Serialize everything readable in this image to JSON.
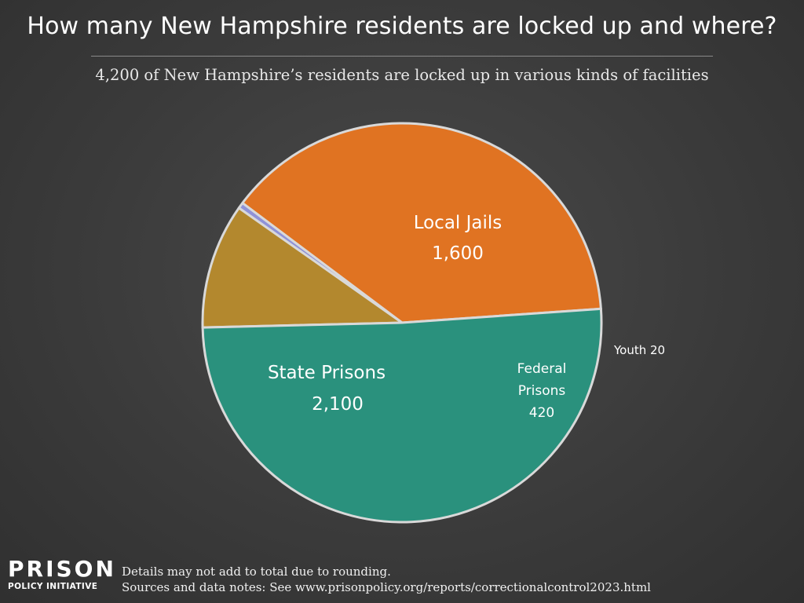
{
  "header": {
    "title": "How many New Hampshire residents are locked up and where?",
    "subtitle": "4,200 of New Hampshire’s residents are locked up in various kinds of facilities"
  },
  "chart_data": {
    "type": "pie",
    "total": 4200,
    "slices": [
      {
        "label": "Local Jails",
        "value_label": "1,600",
        "value": 1600,
        "color": "#e07322"
      },
      {
        "label": "Youth",
        "value_label": "20",
        "value": 20,
        "color": "#8f92d8"
      },
      {
        "label": "Federal Prisons",
        "value_label": "420",
        "value": 420,
        "color": "#b3882e"
      },
      {
        "label": "State Prisons",
        "value_label": "2,100",
        "value": 2100,
        "color": "#2a917d"
      }
    ],
    "slice_border_color": "#d9d9d9"
  },
  "labels": {
    "local_jails_line1": "Local Jails",
    "local_jails_line2": "1,600",
    "state_prisons_line1": "State Prisons",
    "state_prisons_line2": "2,100",
    "federal_line1": "Federal",
    "federal_line2": "Prisons",
    "federal_line3": "420",
    "youth": "Youth 20"
  },
  "footer": {
    "logo_line1": "PRISON",
    "logo_line2": "POLICY INITIATIVE",
    "note1": "Details may not add to total due to rounding.",
    "note2": "Sources and data notes: See www.prisonpolicy.org/reports/correctionalcontrol2023.html"
  }
}
